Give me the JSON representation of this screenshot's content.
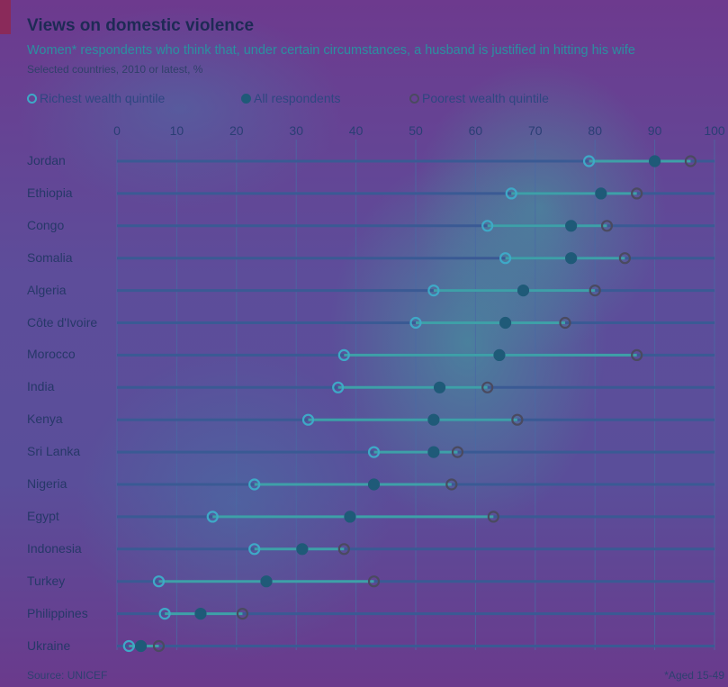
{
  "title": "Views on domestic violence",
  "subtitle": "Women* respondents who think that, under certain circumstances, a husband is justified in hitting his wife",
  "note": "Selected countries, 2010 or latest, %",
  "legend": {
    "richest": "Richest wealth quintile",
    "all": "All respondents",
    "poorest": "Poorest wealth quintile"
  },
  "footer": {
    "source": "Source: UNICEF",
    "footnote": "*Aged 15-49"
  },
  "colors": {
    "richest": "#3ea9c7",
    "all": "#1f5a78",
    "poorest": "#4a4a60",
    "line": "#3a5a94"
  },
  "chart_data": {
    "type": "scatter",
    "xlim": [
      0,
      100
    ],
    "xticks": [
      0,
      10,
      20,
      30,
      40,
      50,
      60,
      70,
      80,
      90,
      100
    ],
    "grid": true,
    "legend_position": "top",
    "categories": [
      "Jordan",
      "Ethiopia",
      "Congo",
      "Somalia",
      "Algeria",
      "Côte d'Ivoire",
      "Morocco",
      "India",
      "Kenya",
      "Sri Lanka",
      "Nigeria",
      "Egypt",
      "Indonesia",
      "Turkey",
      "Philippines",
      "Ukraine"
    ],
    "series": [
      {
        "name": "Richest wealth quintile",
        "values": [
          79,
          66,
          62,
          65,
          53,
          50,
          38,
          37,
          32,
          43,
          23,
          16,
          23,
          7,
          8,
          2
        ]
      },
      {
        "name": "All respondents",
        "values": [
          90,
          81,
          76,
          76,
          68,
          65,
          64,
          54,
          53,
          53,
          43,
          39,
          31,
          25,
          14,
          4
        ]
      },
      {
        "name": "Poorest wealth quintile",
        "values": [
          96,
          87,
          82,
          85,
          80,
          75,
          87,
          62,
          67,
          57,
          56,
          63,
          38,
          43,
          21,
          7
        ]
      }
    ]
  }
}
